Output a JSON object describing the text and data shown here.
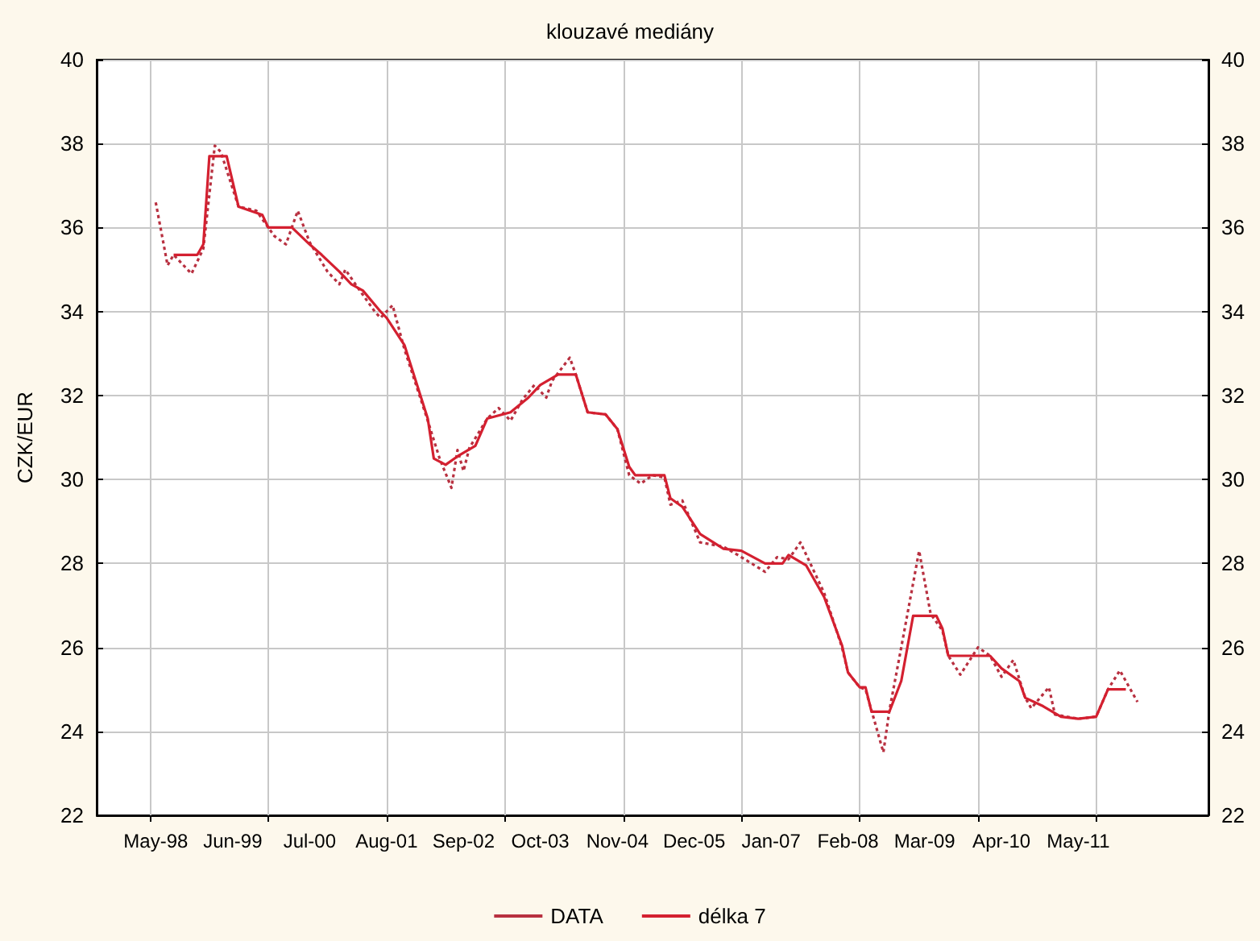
{
  "chart_data": {
    "type": "line",
    "title": "klouzavé mediány",
    "ylabel": "CZK/EUR",
    "xlim": [
      "1997-07",
      "2013-03"
    ],
    "xticks": [
      {
        "value": "1998-05",
        "label": "May-98"
      },
      {
        "value": "1999-06",
        "label": "Jun-99"
      },
      {
        "value": "2000-07",
        "label": "Jul-00"
      },
      {
        "value": "2001-08",
        "label": "Aug-01"
      },
      {
        "value": "2002-09",
        "label": "Sep-02"
      },
      {
        "value": "2003-10",
        "label": "Oct-03"
      },
      {
        "value": "2004-11",
        "label": "Nov-04"
      },
      {
        "value": "2005-12",
        "label": "Dec-05"
      },
      {
        "value": "2007-01",
        "label": "Jan-07"
      },
      {
        "value": "2008-02",
        "label": "Feb-08"
      },
      {
        "value": "2009-03",
        "label": "Mar-09"
      },
      {
        "value": "2010-04",
        "label": "Apr-10"
      },
      {
        "value": "2011-05",
        "label": "May-11"
      },
      {
        "value": "1998-04",
        "label": null
      },
      {
        "value": "1999-12",
        "label": null
      },
      {
        "value": "2001-08",
        "label": null
      },
      {
        "value": "2003-04",
        "label": null
      },
      {
        "value": "2004-12",
        "label": null
      },
      {
        "value": "2006-08",
        "label": null
      },
      {
        "value": "2008-04",
        "label": null
      },
      {
        "value": "2009-12",
        "label": null
      },
      {
        "value": "2011-08",
        "label": null
      }
    ],
    "ylim": [
      22,
      40
    ],
    "yticks": [
      22,
      24,
      26,
      28,
      30,
      32,
      34,
      36,
      38,
      40
    ],
    "y2lim": [
      22,
      40
    ],
    "y2ticks": [
      22,
      24,
      26,
      28,
      30,
      32,
      34,
      36,
      38,
      40
    ],
    "grid": true,
    "legend": "bottom",
    "marker": "none",
    "series": [
      {
        "name": "DATA",
        "color": "#b83040",
        "line_style": "dotted",
        "x": [
          "1998-05",
          "1998-07",
          "1998-08",
          "1998-11",
          "1999-01",
          "1999-03",
          "1999-04",
          "1999-07",
          "1999-10",
          "2000-01",
          "2000-03",
          "2000-05",
          "2000-07",
          "2000-10",
          "2000-12",
          "2001-01",
          "2001-03",
          "2001-06",
          "2001-07",
          "2001-09",
          "2001-11",
          "2002-03",
          "2002-05",
          "2002-07",
          "2002-08",
          "2002-09",
          "2002-10",
          "2003-01",
          "2003-03",
          "2003-05",
          "2003-07",
          "2003-09",
          "2003-11",
          "2003-12",
          "2004-03",
          "2004-04",
          "2004-06",
          "2004-09",
          "2004-11",
          "2005-01",
          "2005-03",
          "2005-05",
          "2005-07",
          "2005-08",
          "2005-10",
          "2006-01",
          "2006-05",
          "2006-08",
          "2006-12",
          "2007-02",
          "2007-04",
          "2007-06",
          "2007-08",
          "2007-10",
          "2008-01",
          "2008-02",
          "2008-04",
          "2008-05",
          "2008-08",
          "2008-09",
          "2008-11",
          "2009-02",
          "2009-04",
          "2009-06",
          "2009-07",
          "2009-09",
          "2009-12",
          "2010-02",
          "2010-04",
          "2010-06",
          "2010-08",
          "2010-09",
          "2010-12",
          "2011-01",
          "2011-05",
          "2011-08",
          "2011-10",
          "2011-12",
          "2012-03"
        ],
        "values": [
          36.6,
          35.1,
          35.35,
          34.9,
          35.5,
          37.95,
          37.8,
          36.5,
          36.4,
          35.8,
          35.6,
          36.4,
          35.65,
          34.95,
          34.65,
          35.0,
          34.6,
          34.0,
          33.85,
          34.15,
          33.1,
          31.4,
          30.5,
          29.8,
          30.7,
          30.2,
          30.75,
          31.45,
          31.7,
          31.4,
          31.9,
          32.25,
          31.95,
          32.35,
          32.9,
          32.5,
          31.6,
          31.55,
          31.2,
          30.1,
          29.9,
          30.1,
          30.05,
          29.4,
          29.5,
          28.5,
          28.4,
          28.15,
          27.8,
          28.15,
          28.1,
          28.5,
          27.9,
          27.3,
          26.0,
          25.4,
          25.05,
          25.0,
          23.5,
          24.5,
          26.0,
          28.3,
          26.8,
          26.4,
          25.8,
          25.35,
          26.0,
          25.8,
          25.3,
          25.7,
          24.8,
          24.55,
          25.05,
          24.4,
          24.3,
          24.35,
          25.0,
          25.45,
          24.7
        ]
      },
      {
        "name": "délka 7",
        "color": "#d42030",
        "line_style": "solid",
        "x": [
          "1998-08",
          "1998-12",
          "1999-01",
          "1999-02",
          "1999-05",
          "1999-07",
          "1999-11",
          "1999-12",
          "2000-04",
          "2000-07",
          "2000-09",
          "2000-12",
          "2001-02",
          "2001-04",
          "2001-07",
          "2001-08",
          "2001-11",
          "2002-03",
          "2002-04",
          "2002-06",
          "2002-08",
          "2002-11",
          "2003-01",
          "2003-05",
          "2003-08",
          "2003-10",
          "2004-01",
          "2004-04",
          "2004-06",
          "2004-09",
          "2004-11",
          "2005-01",
          "2005-02",
          "2005-07",
          "2005-08",
          "2005-10",
          "2006-01",
          "2006-05",
          "2006-08",
          "2006-12",
          "2007-03",
          "2007-04",
          "2007-07",
          "2007-10",
          "2008-01",
          "2008-02",
          "2008-04",
          "2008-05",
          "2008-06",
          "2008-09",
          "2008-11",
          "2009-01",
          "2009-05",
          "2009-06",
          "2009-07",
          "2010-02",
          "2010-04",
          "2010-07",
          "2010-08",
          "2010-11",
          "2011-02",
          "2011-05",
          "2011-08",
          "2011-10",
          "2012-01"
        ],
        "values": [
          35.35,
          35.35,
          35.6,
          37.7,
          37.7,
          36.5,
          36.3,
          36.0,
          36.0,
          35.6,
          35.35,
          34.95,
          34.65,
          34.5,
          34.0,
          33.85,
          33.2,
          31.45,
          30.5,
          30.35,
          30.55,
          30.8,
          31.45,
          31.6,
          31.95,
          32.25,
          32.5,
          32.5,
          31.6,
          31.55,
          31.2,
          30.3,
          30.1,
          30.1,
          29.55,
          29.35,
          28.7,
          28.35,
          28.3,
          28.0,
          28.0,
          28.2,
          27.95,
          27.2,
          26.05,
          25.4,
          25.05,
          25.05,
          24.47,
          24.47,
          25.2,
          26.75,
          26.75,
          26.45,
          25.8,
          25.8,
          25.5,
          25.2,
          24.8,
          24.6,
          24.35,
          24.3,
          24.35,
          25.0,
          25.0
        ]
      }
    ]
  }
}
